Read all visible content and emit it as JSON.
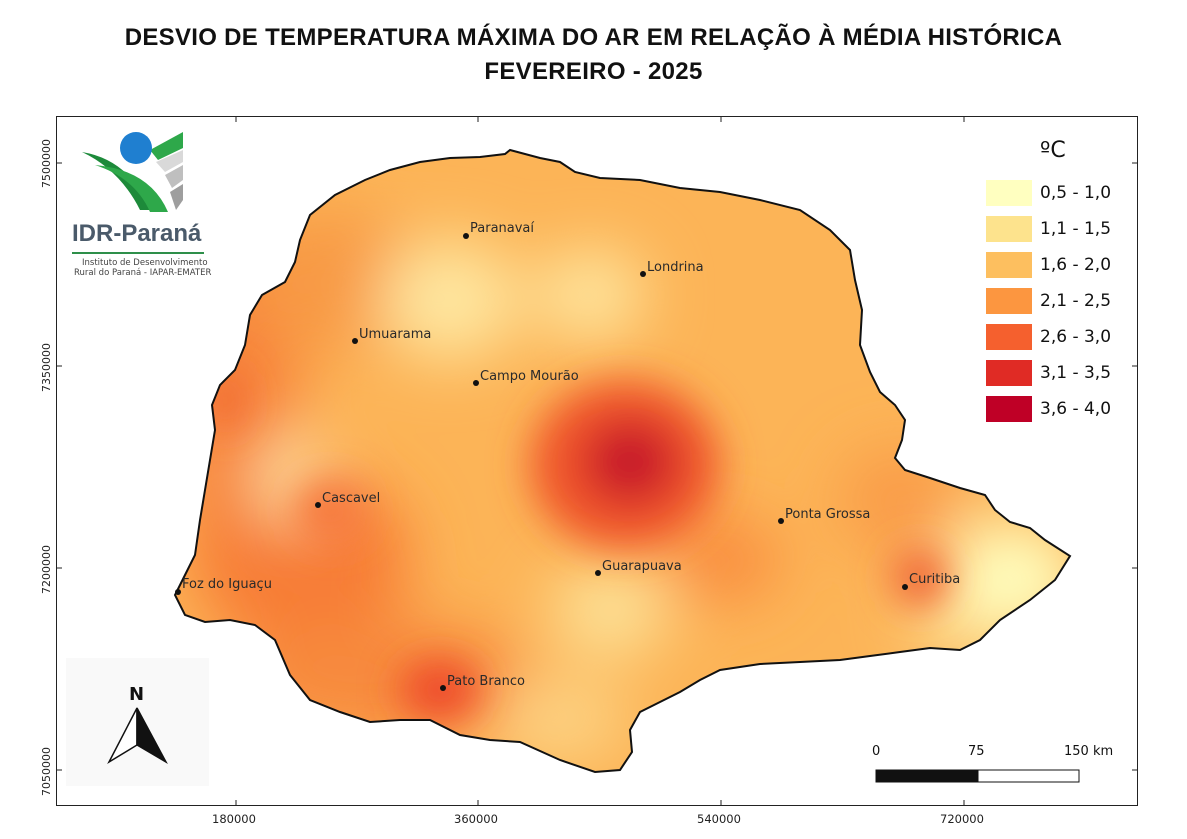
{
  "title": {
    "line1": "DESVIO DE TEMPERATURA MÁXIMA DO AR EM RELAÇÃO À MÉDIA HISTÓRICA",
    "line2": "FEVEREIRO - 2025"
  },
  "logo": {
    "name": "IDR-Paraná",
    "subtitle_line1": "Instituto de Desenvolvimento",
    "subtitle_line2": "Rural do Paraná - IAPAR-EMATER"
  },
  "axes": {
    "y_ticks": [
      "7500000",
      "7350000",
      "7200000",
      "7050000"
    ],
    "x_ticks": [
      "180000",
      "360000",
      "540000",
      "720000"
    ]
  },
  "legend": {
    "title": "ºC",
    "items": [
      {
        "label": "0,5 - 1,0",
        "color": "#ffffc0"
      },
      {
        "label": "1,1 - 1,5",
        "color": "#fde38d"
      },
      {
        "label": "1,6 - 2,0",
        "color": "#fdbf5f"
      },
      {
        "label": "2,1 - 2,5",
        "color": "#fc9640"
      },
      {
        "label": "2,6 - 3,0",
        "color": "#f5602e"
      },
      {
        "label": "3,1 - 3,5",
        "color": "#e02b25"
      },
      {
        "label": "3,6 - 4,0",
        "color": "#bf0026"
      }
    ]
  },
  "cities": [
    {
      "name": "Paranavaí"
    },
    {
      "name": "Londrina"
    },
    {
      "name": "Umuarama"
    },
    {
      "name": "Campo Mourão"
    },
    {
      "name": "Cascavel"
    },
    {
      "name": "Ponta Grossa"
    },
    {
      "name": "Guarapuava"
    },
    {
      "name": "Foz do Iguaçu"
    },
    {
      "name": "Curitiba"
    },
    {
      "name": "Pato Branco"
    }
  ],
  "scale_bar": {
    "labels": [
      "0",
      "75",
      "150 km"
    ]
  },
  "north_arrow": {
    "label": "N"
  }
}
